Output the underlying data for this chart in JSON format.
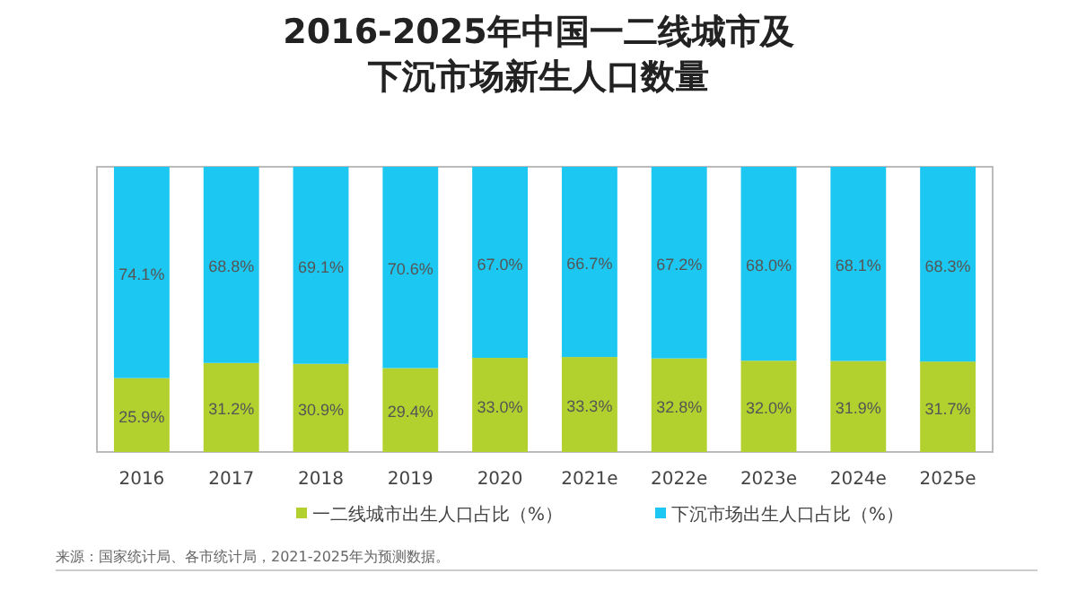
{
  "chart_data": {
    "type": "bar",
    "stacked": true,
    "title": "2016-2025年中国一二线城市及下沉市场新生人口数量",
    "categories": [
      "2016",
      "2017",
      "2018",
      "2019",
      "2020",
      "2021e",
      "2022e",
      "2023e",
      "2024e",
      "2025e"
    ],
    "series": [
      {
        "name": "一二线城市出生人口占比（%）",
        "color": "#b3d12e",
        "values": [
          25.9,
          31.2,
          30.9,
          29.4,
          33.0,
          33.3,
          32.8,
          32.0,
          31.9,
          31.7
        ],
        "value_labels": [
          "25.9%",
          "31.2%",
          "30.9%",
          "29.4%",
          "33.0%",
          "33.3%",
          "32.8%",
          "32.0%",
          "31.9%",
          "31.7%"
        ]
      },
      {
        "name": "下沉市场出生人口占比（%）",
        "color": "#1cc7f1",
        "values": [
          74.1,
          68.8,
          69.1,
          70.6,
          67.0,
          66.7,
          67.2,
          68.0,
          68.1,
          68.3
        ],
        "value_labels": [
          "74.1%",
          "68.8%",
          "69.1%",
          "70.6%",
          "67.0%",
          "66.7%",
          "67.2%",
          "68.0%",
          "68.1%",
          "68.3%"
        ]
      }
    ],
    "legend": "bottom",
    "annotations": [
      "来源：国家统计局、各市统计局，2021-2025年为预测数据。"
    ]
  }
}
